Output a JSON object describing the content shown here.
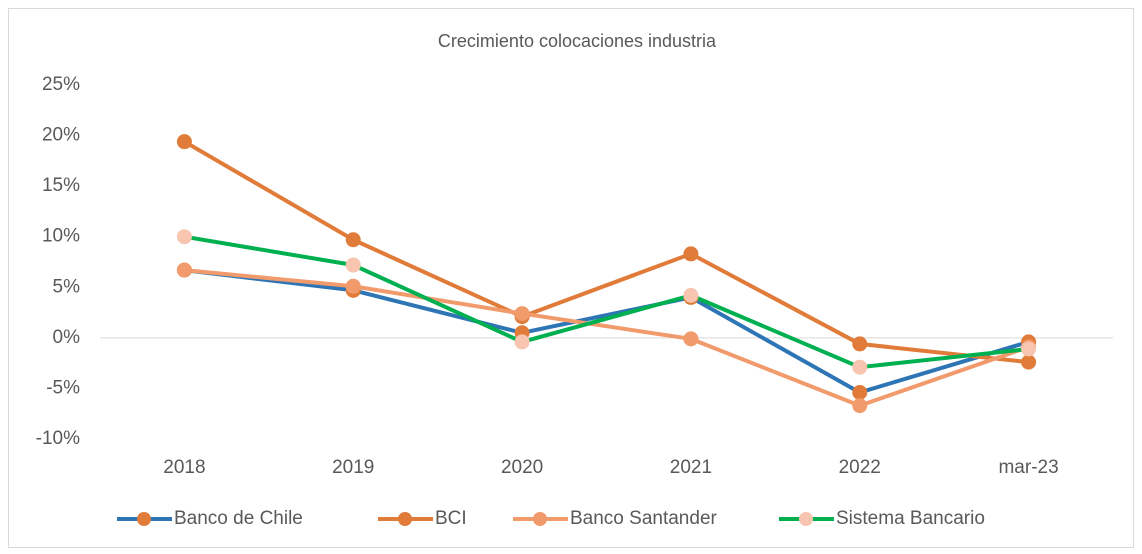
{
  "chart_data": {
    "type": "line",
    "title": "Crecimiento colocaciones industria",
    "categories": [
      "2018",
      "2019",
      "2020",
      "2021",
      "2022",
      "mar-23"
    ],
    "series": [
      {
        "name": "Banco de Chile",
        "color": "#2e75b6",
        "marker_color": "#e07b39",
        "values": [
          6.7,
          4.7,
          0.5,
          4.0,
          -5.4,
          -0.4
        ]
      },
      {
        "name": "BCI",
        "color": "#e07b39",
        "marker_color": "#e07b39",
        "values": [
          19.4,
          9.7,
          2.1,
          8.3,
          -0.6,
          -2.4
        ]
      },
      {
        "name": "Banco Santander",
        "color": "#f19a6b",
        "marker_color": "#f19a6b",
        "values": [
          6.7,
          5.1,
          2.4,
          -0.1,
          -6.7,
          -0.9
        ]
      },
      {
        "name": "Sistema Bancario",
        "color": "#00b050",
        "marker_color": "#f8c5b0",
        "values": [
          10.0,
          7.2,
          -0.4,
          4.2,
          -2.9,
          -1.1
        ]
      }
    ],
    "ylim": [
      -10,
      25
    ],
    "yticks": [
      {
        "value": -10,
        "label": "-10%"
      },
      {
        "value": -5,
        "label": "-5%"
      },
      {
        "value": 0,
        "label": "0%"
      },
      {
        "value": 5,
        "label": "5%"
      },
      {
        "value": 10,
        "label": "10%"
      },
      {
        "value": 15,
        "label": "15%"
      },
      {
        "value": 20,
        "label": "20%"
      },
      {
        "value": 25,
        "label": "25%"
      }
    ],
    "grid": false,
    "legend": "bottom"
  }
}
